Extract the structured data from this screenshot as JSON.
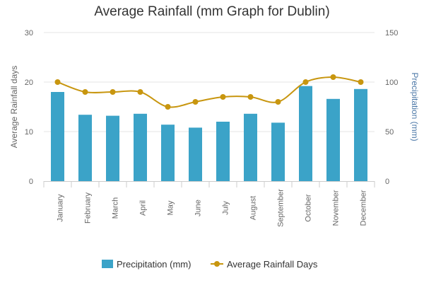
{
  "chart_data": {
    "type": "bar",
    "title": "Average Rainfall (mm Graph for Dublin)",
    "categories": [
      "January",
      "February",
      "March",
      "April",
      "May",
      "June",
      "July",
      "August",
      "September",
      "October",
      "November",
      "December"
    ],
    "y_left": {
      "label": "Average Rainfall days",
      "min": 0,
      "max": 30,
      "ticks": [
        0,
        10,
        20,
        30
      ]
    },
    "y_right": {
      "label": "Precipitation (mm)",
      "min": 0,
      "max": 150,
      "ticks": [
        0,
        50,
        100,
        150
      ]
    },
    "series": [
      {
        "name": "Precipitation (mm)",
        "type": "bar",
        "axis": "right",
        "color": "#3ba3c8",
        "values": [
          90,
          67,
          66,
          68,
          57,
          54,
          60,
          68,
          59,
          96,
          83,
          93
        ]
      },
      {
        "name": "Average Rainfall Days",
        "type": "line",
        "axis": "left",
        "color": "#c8960f",
        "values": [
          20,
          18,
          18,
          18,
          15,
          16,
          17,
          17,
          16,
          20,
          21,
          20
        ]
      }
    ],
    "grid": true,
    "legend_position": "bottom"
  }
}
